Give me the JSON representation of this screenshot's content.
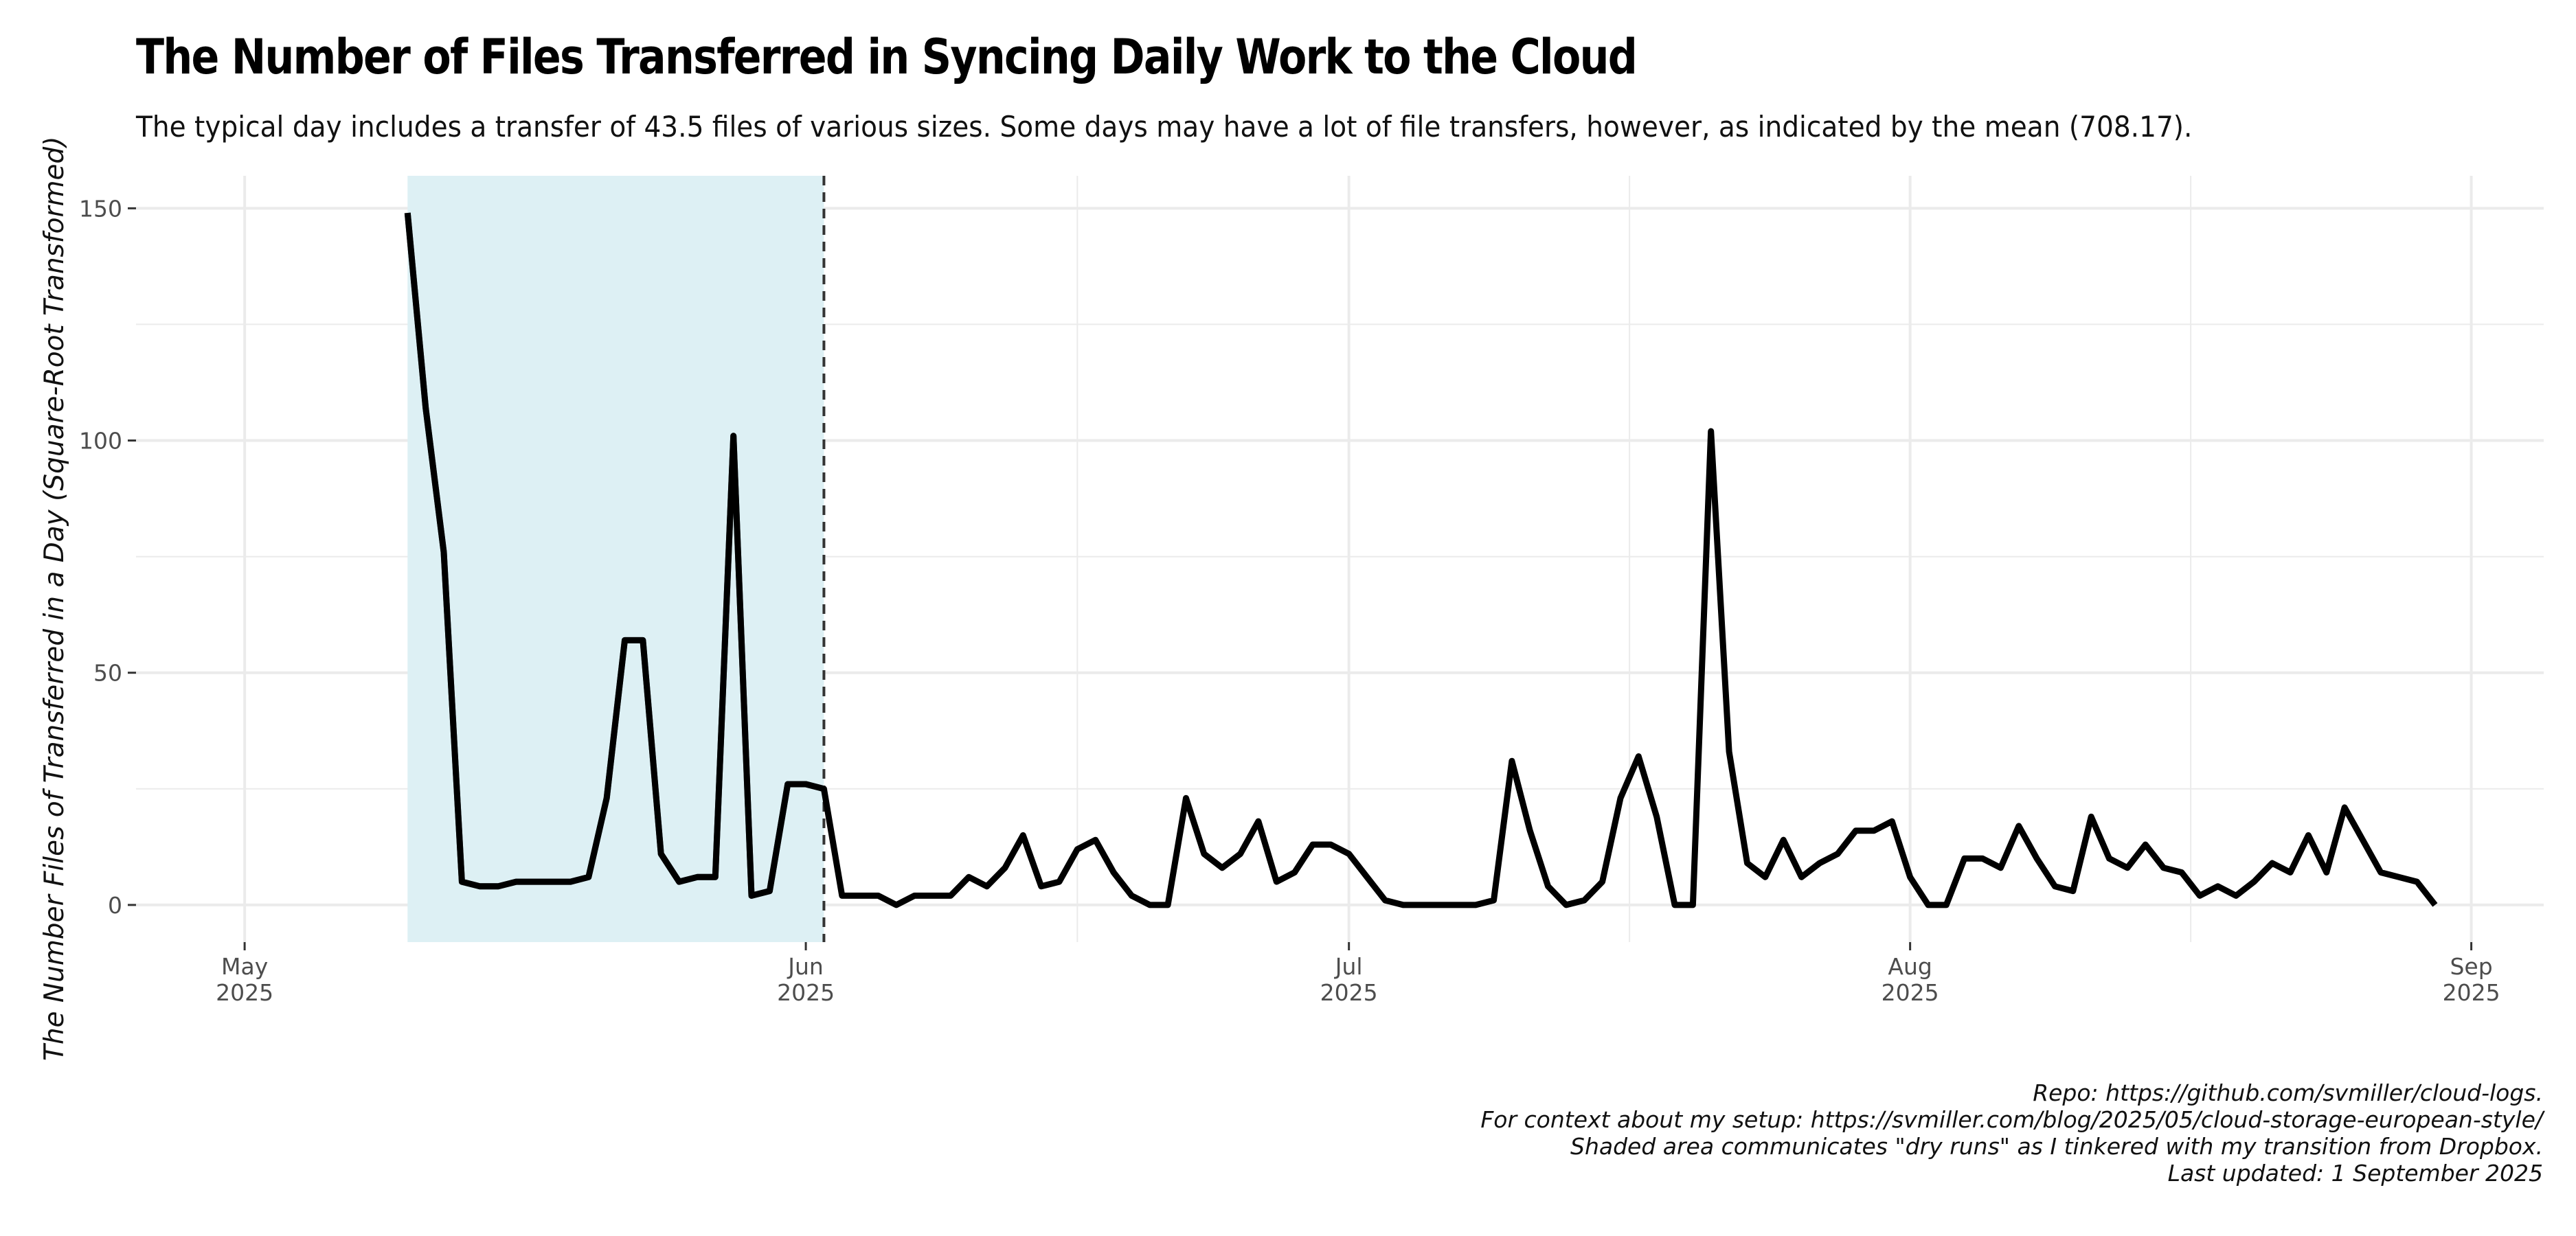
{
  "title": "The Number of Files Transferred in Syncing Daily Work to the Cloud",
  "subtitle": "The typical day includes a transfer of 43.5 files of various sizes. Some days may have a lot of file transfers, however, as indicated by the mean (708.17).",
  "caption": [
    "Repo: https://github.com/svmiller/cloud-logs.",
    "For context about my setup: https://svmiller.com/blog/2025/05/cloud-storage-european-style/",
    "Shaded area communicates \"dry runs\" as I tinkered with my transition from Dropbox.",
    "Last updated: 1 September 2025"
  ],
  "colors": {
    "shade": "#ddf0f4",
    "line": "#000000",
    "grid": "#ebebeb",
    "vline": "#333333"
  },
  "chart_data": {
    "type": "line",
    "title": "The Number of Files Transferred in Syncing Daily Work to the Cloud",
    "xlabel": "",
    "ylabel": "The Number Files of Transferred in a Day (Square-Root Transformed)",
    "x_range": [
      "2025-04-25",
      "2025-09-05"
    ],
    "ylim": [
      -8,
      157
    ],
    "yticks": [
      0,
      50,
      100,
      150
    ],
    "xticks": [
      {
        "date": "2025-05-01",
        "label": "May\n2025"
      },
      {
        "date": "2025-06-01",
        "label": "Jun\n2025"
      },
      {
        "date": "2025-07-01",
        "label": "Jul\n2025"
      },
      {
        "date": "2025-08-01",
        "label": "Aug\n2025"
      },
      {
        "date": "2025-09-01",
        "label": "Sep\n2025"
      }
    ],
    "grid": true,
    "shaded_region": {
      "from": "2025-05-10",
      "to": "2025-06-02"
    },
    "vline": "2025-06-02",
    "series": [
      {
        "x": [
          "2025-05-10",
          "2025-05-11",
          "2025-05-12",
          "2025-05-13",
          "2025-05-14",
          "2025-05-15",
          "2025-05-16",
          "2025-05-17",
          "2025-05-18",
          "2025-05-19",
          "2025-05-20",
          "2025-05-21",
          "2025-05-22",
          "2025-05-23",
          "2025-05-24",
          "2025-05-25",
          "2025-05-26",
          "2025-05-27",
          "2025-05-28",
          "2025-05-29",
          "2025-05-30",
          "2025-05-31",
          "2025-06-01",
          "2025-06-02",
          "2025-06-03",
          "2025-06-04",
          "2025-06-05",
          "2025-06-06",
          "2025-06-07",
          "2025-06-08",
          "2025-06-09",
          "2025-06-10",
          "2025-06-11",
          "2025-06-12",
          "2025-06-13",
          "2025-06-14",
          "2025-06-15",
          "2025-06-16",
          "2025-06-17",
          "2025-06-18",
          "2025-06-19",
          "2025-06-20",
          "2025-06-21",
          "2025-06-22",
          "2025-06-23",
          "2025-06-24",
          "2025-06-25",
          "2025-06-26",
          "2025-06-27",
          "2025-06-28",
          "2025-06-29",
          "2025-06-30",
          "2025-07-01",
          "2025-07-02",
          "2025-07-03",
          "2025-07-04",
          "2025-07-05",
          "2025-07-06",
          "2025-07-07",
          "2025-07-08",
          "2025-07-09",
          "2025-07-10",
          "2025-07-11",
          "2025-07-12",
          "2025-07-13",
          "2025-07-14",
          "2025-07-15",
          "2025-07-16",
          "2025-07-17",
          "2025-07-18",
          "2025-07-19",
          "2025-07-20",
          "2025-07-21",
          "2025-07-22",
          "2025-07-23",
          "2025-07-24",
          "2025-07-25",
          "2025-07-26",
          "2025-07-27",
          "2025-07-28",
          "2025-07-29",
          "2025-07-30",
          "2025-07-31",
          "2025-08-01",
          "2025-08-02",
          "2025-08-03",
          "2025-08-04",
          "2025-08-05",
          "2025-08-06",
          "2025-08-07",
          "2025-08-08",
          "2025-08-09",
          "2025-08-10",
          "2025-08-11",
          "2025-08-12",
          "2025-08-13",
          "2025-08-14",
          "2025-08-15",
          "2025-08-16",
          "2025-08-17",
          "2025-08-18",
          "2025-08-19",
          "2025-08-20",
          "2025-08-21",
          "2025-08-22",
          "2025-08-23",
          "2025-08-24",
          "2025-08-25",
          "2025-08-26",
          "2025-08-27",
          "2025-08-28",
          "2025-08-29",
          "2025-08-30"
        ],
        "values": [
          149,
          107,
          76,
          5,
          4,
          4,
          5,
          5,
          5,
          5,
          6,
          23,
          57,
          57,
          11,
          5,
          6,
          6,
          101,
          2,
          3,
          26,
          26,
          25,
          2,
          2,
          2,
          0,
          2,
          2,
          2,
          6,
          4,
          8,
          15,
          4,
          5,
          12,
          14,
          7,
          2,
          0,
          0,
          23,
          11,
          8,
          11,
          18,
          5,
          7,
          13,
          13,
          11,
          6,
          1,
          0,
          0,
          0,
          0,
          0,
          1,
          31,
          16,
          4,
          0,
          1,
          5,
          23,
          32,
          19,
          0,
          0,
          102,
          33,
          9,
          6,
          14,
          6,
          9,
          11,
          16,
          16,
          18,
          6,
          0,
          0,
          10,
          10,
          8,
          17,
          10,
          4,
          3,
          19,
          10,
          8,
          13,
          8,
          7,
          2,
          4,
          2,
          5,
          9,
          7,
          15,
          7,
          21,
          14,
          7,
          6,
          5,
          0
        ]
      }
    ]
  }
}
